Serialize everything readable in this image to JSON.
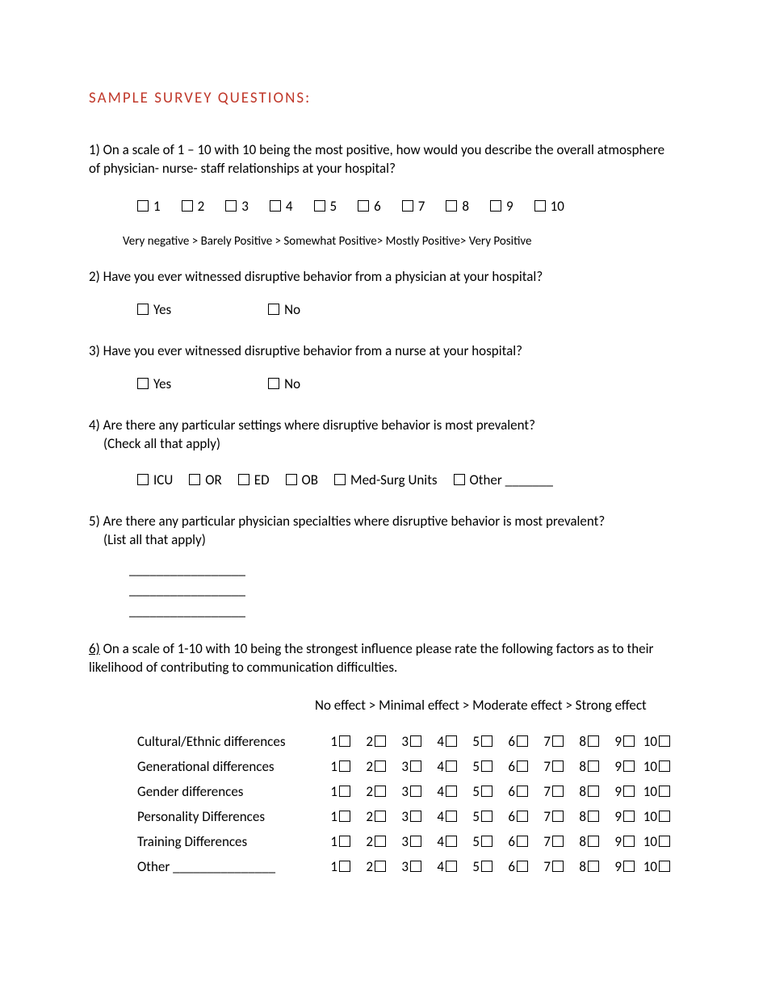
{
  "colors": {
    "title": "#c0392b",
    "text": "#000000",
    "bg": "#ffffff"
  },
  "title": "SAMPLE SURVEY QUESTIONS:",
  "q1": {
    "text": "1) On a scale of 1 – 10 with 10 being the most positive, how would you describe the overall atmosphere of physician- nurse- staff relationships at your hospital?",
    "options": [
      "1",
      "2",
      "3",
      "4",
      "5",
      "6",
      "7",
      "8",
      "9",
      "10"
    ],
    "legend": "Very negative >  Barely Positive >  Somewhat Positive>  Mostly Positive>  Very Positive"
  },
  "q2": {
    "text": "2) Have you ever witnessed disruptive behavior from a physician at your hospital?",
    "yes": "Yes",
    "no": "No"
  },
  "q3": {
    "text": "3) Have you ever witnessed disruptive behavior from a nurse at your hospital?",
    "yes": "Yes",
    "no": "No"
  },
  "q4": {
    "text": "4) Are there any particular settings where disruptive behavior is most prevalent?",
    "instr": "(Check all that apply)",
    "options": [
      "ICU",
      "OR",
      "ED",
      "OB",
      "Med-Surg Units",
      "Other _______"
    ]
  },
  "q5": {
    "text": "5) Are there any particular physician specialties where disruptive behavior is most prevalent?",
    "instr": "(List all that apply)",
    "line": "_________________"
  },
  "q6": {
    "num": "6)",
    "text": " On a scale of 1-10 with 10 being the strongest influence please rate the following factors as to their likelihood of contributing to communication difficulties.",
    "legend": "No effect > Minimal effect > Moderate effect > Strong effect",
    "scale": [
      "1",
      "2",
      "3",
      "4",
      "5",
      "6",
      "7",
      "8",
      "9",
      "10"
    ],
    "factors": [
      "Cultural/Ethnic differences",
      "Generational differences",
      "Gender differences",
      "Personality Differences",
      "Training Differences",
      "Other _______________"
    ]
  }
}
